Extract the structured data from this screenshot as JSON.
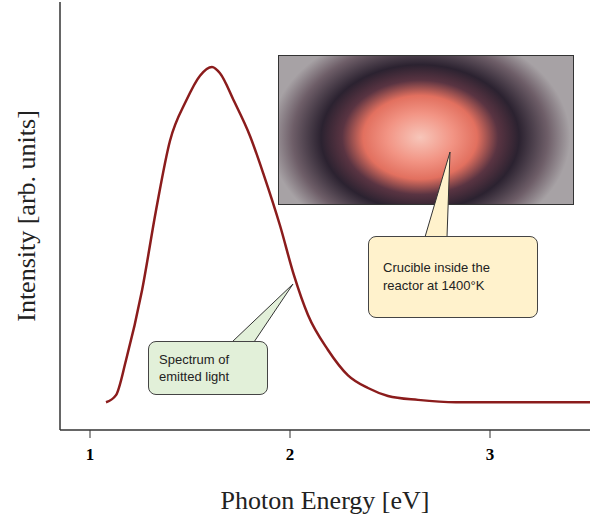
{
  "chart_data": {
    "type": "line",
    "x_label": "Photon Energy [eV]",
    "y_label": "Intensity [arb. units]",
    "x": [
      1.08,
      1.13,
      1.18,
      1.26,
      1.33,
      1.4,
      1.48,
      1.55,
      1.61,
      1.65,
      1.72,
      1.8,
      1.87,
      1.95,
      2.02,
      2.09,
      2.19,
      2.29,
      2.39,
      2.49,
      2.64,
      2.83,
      3.13,
      3.5
    ],
    "values": [
      0.35,
      0.44,
      0.88,
      1.76,
      2.77,
      3.65,
      4.15,
      4.47,
      4.58,
      4.5,
      4.15,
      3.71,
      3.21,
      2.58,
      1.95,
      1.45,
      1.01,
      0.69,
      0.53,
      0.43,
      0.38,
      0.35,
      0.35,
      0.35
    ],
    "color": "#8b1c1c",
    "xlim": [
      0.85,
      3.5
    ],
    "xticks": [
      1,
      2,
      3
    ],
    "ylim": [
      0,
      5.4
    ],
    "yticks": [
      0.6,
      1.6,
      2.6,
      3.6,
      4.6
    ],
    "tick_labels": "x",
    "grid": false,
    "annotations": [
      "Spectrum of emitted light",
      "Crucible inside the reactor at 1400°K"
    ]
  }
}
